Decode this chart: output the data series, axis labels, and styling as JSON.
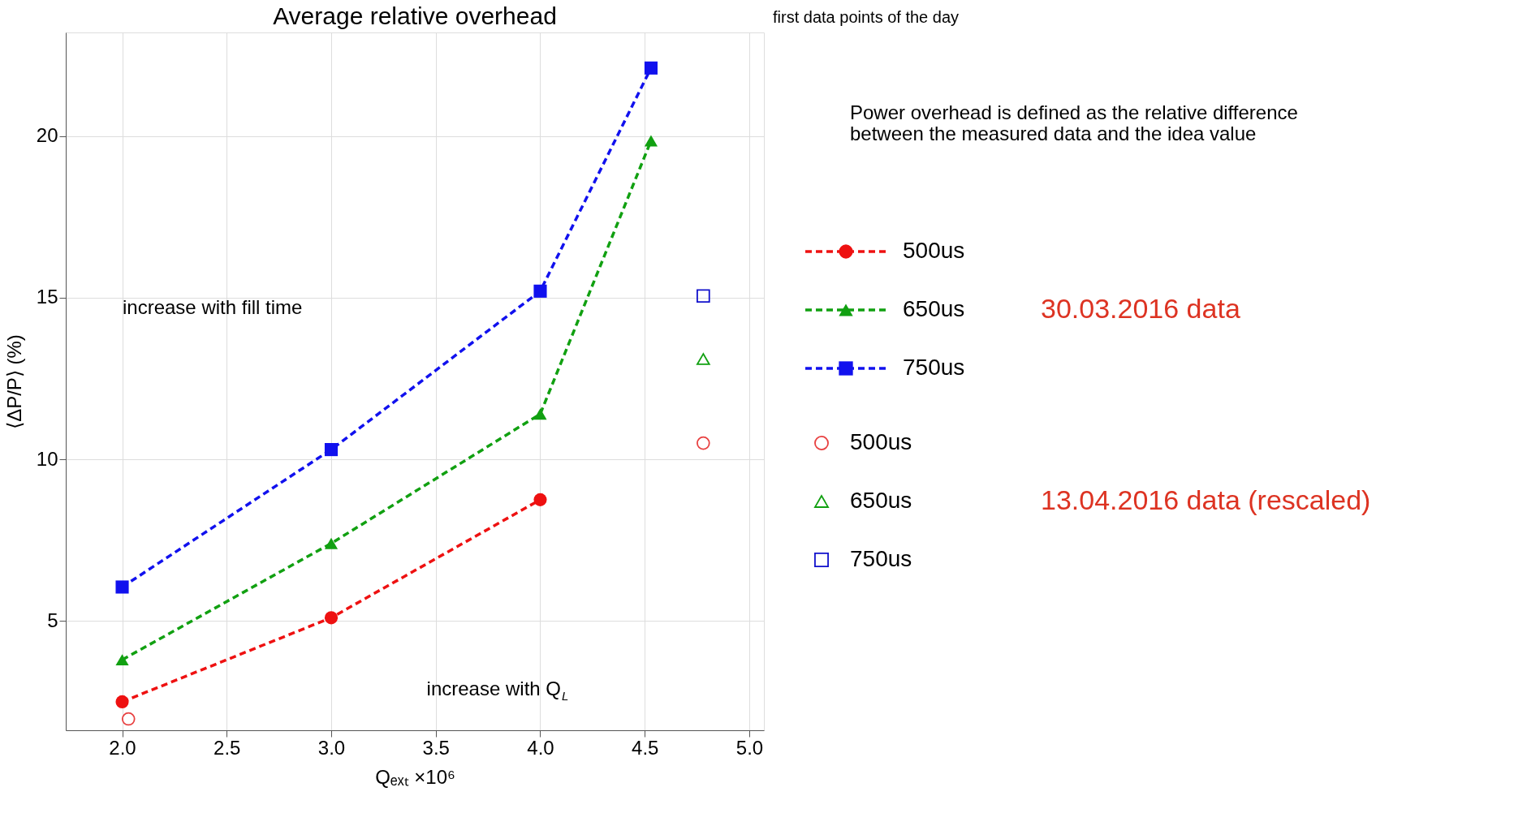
{
  "chart_data": {
    "type": "line",
    "title": "Average relative overhead",
    "xlabel": "Qₑₓₜ ×10⁶",
    "ylabel": "⟨ΔP/P⟩ (%)",
    "xlim": [
      1.73,
      5.07
    ],
    "ylim": [
      1.62,
      23.2
    ],
    "xticks": [
      {
        "value": 2,
        "label": "2.0"
      },
      {
        "value": 2.5,
        "label": "2.5"
      },
      {
        "value": 3,
        "label": "3.0"
      },
      {
        "value": 3.5,
        "label": "3.5"
      },
      {
        "value": 4,
        "label": "4.0"
      },
      {
        "value": 4.5,
        "label": "4.5"
      },
      {
        "value": 5,
        "label": "5.0"
      }
    ],
    "yticks": [
      5,
      10,
      15,
      20
    ],
    "grid": true,
    "legend": "right",
    "annotations": [
      "first data points of the day",
      "increase with fill time",
      "increase with Q$_{L}$",
      "Power overhead is defined as the relative difference\nbetween the measured data and the idea value",
      "30.03.2016 data",
      "13.04.2016 data (rescaled)"
    ],
    "series": [
      {
        "name": "500us",
        "color": "#ee1111",
        "marker": "circle",
        "line_style": "dashed",
        "x": [
          2.0,
          3.0,
          4.0
        ],
        "values": [
          2.5,
          5.1,
          8.75
        ]
      },
      {
        "name": "650us",
        "color": "#11a011",
        "marker": "triangle",
        "line_style": "dashed",
        "x": [
          2.0,
          3.0,
          4.0,
          4.53
        ],
        "values": [
          3.8,
          7.4,
          11.4,
          19.85
        ]
      },
      {
        "name": "750us",
        "color": "#1111ee",
        "marker": "square",
        "line_style": "dashed",
        "x": [
          2.0,
          3.0,
          4.0,
          4.53
        ],
        "values": [
          6.05,
          10.3,
          15.2,
          22.1
        ]
      },
      {
        "name": "500us",
        "type": "scatter",
        "color": "#e84040",
        "marker": "circle",
        "x": [
          2.03,
          4.78
        ],
        "values": [
          1.97,
          10.5
        ]
      },
      {
        "name": "650us",
        "type": "scatter",
        "color": "#11a011",
        "marker": "triangle",
        "x": [
          4.78
        ],
        "values": [
          13.1
        ]
      },
      {
        "name": "750us",
        "type": "scatter",
        "color": "#1111cc",
        "marker": "square",
        "x": [
          4.78
        ],
        "values": [
          15.05
        ]
      }
    ]
  }
}
